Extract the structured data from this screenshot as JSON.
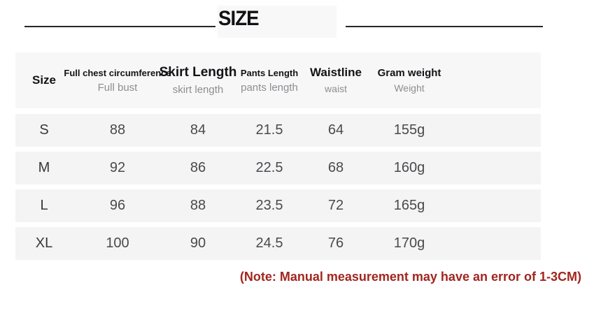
{
  "title": "SIZE",
  "note": {
    "text": "(Note: Manual measurement may have an error of 1-3CM)",
    "color": "#A1261F"
  },
  "colors": {
    "header_bg": "#f7f7f8",
    "row_bg": "#f4f4f5",
    "divider": "#26262a"
  },
  "table": {
    "columns": [
      {
        "primary": "Size",
        "secondary": ""
      },
      {
        "primary": "Full chest circumference",
        "secondary": "Full bust"
      },
      {
        "primary": "Skirt Length",
        "secondary": "skirt length"
      },
      {
        "primary": "Pants Length",
        "secondary": "pants length"
      },
      {
        "primary": "Waistline",
        "secondary": "waist"
      },
      {
        "primary": "Gram weight",
        "secondary": "Weight"
      }
    ],
    "rows": [
      {
        "size": "S",
        "bust": "88",
        "skirt": "84",
        "pants": "21.5",
        "waist": "64",
        "weight": "155g"
      },
      {
        "size": "M",
        "bust": "92",
        "skirt": "86",
        "pants": "22.5",
        "waist": "68",
        "weight": "160g"
      },
      {
        "size": "L",
        "bust": "96",
        "skirt": "88",
        "pants": "23.5",
        "waist": "72",
        "weight": "165g"
      },
      {
        "size": "XL",
        "bust": "100",
        "skirt": "90",
        "pants": "24.5",
        "waist": "76",
        "weight": "170g"
      }
    ]
  },
  "chart_data": {
    "type": "table",
    "title": "SIZE",
    "columns": [
      "Size",
      "Full chest circumference (Full bust)",
      "Skirt Length (skirt length)",
      "Pants Length (pants length)",
      "Waistline (waist)",
      "Gram weight (Weight)"
    ],
    "rows": [
      [
        "S",
        88,
        84,
        21.5,
        64,
        "155g"
      ],
      [
        "M",
        92,
        86,
        22.5,
        68,
        "160g"
      ],
      [
        "L",
        96,
        88,
        23.5,
        72,
        "165g"
      ],
      [
        "XL",
        100,
        90,
        24.5,
        76,
        "170g"
      ]
    ],
    "note": "(Note: Manual measurement may have an error of 1-3CM)"
  }
}
